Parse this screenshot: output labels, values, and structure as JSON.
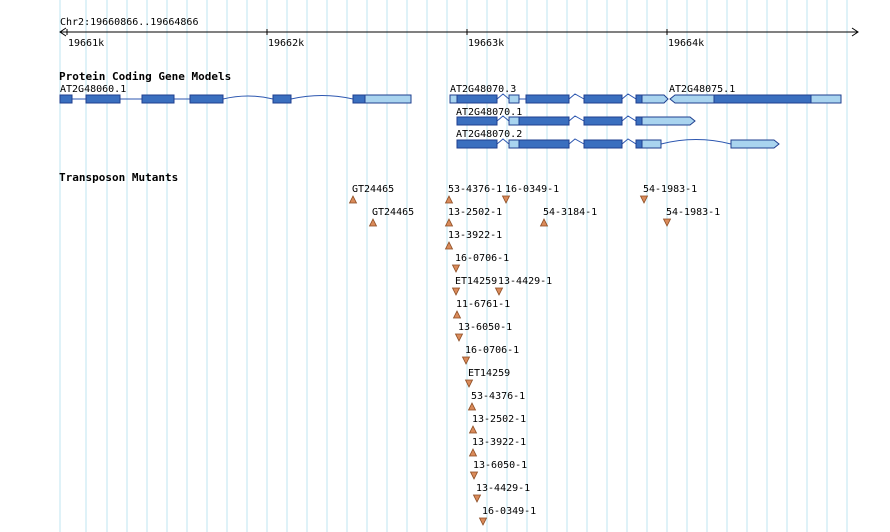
{
  "region": "Chr2:19660866..19664866",
  "ruler": {
    "ticks": [
      {
        "pos": 19661000,
        "label": "19661k"
      },
      {
        "pos": 19662000,
        "label": "19662k"
      },
      {
        "pos": 19663000,
        "label": "19663k"
      },
      {
        "pos": 19664000,
        "label": "19664k"
      }
    ]
  },
  "tracks": {
    "genes": {
      "title": "Protein Coding Gene Models",
      "models": [
        {
          "label": "AT2G48060.1",
          "strand": "-"
        },
        {
          "label": "AT2G48070.3",
          "strand": "+"
        },
        {
          "label": "AT2G48070.1",
          "strand": "+"
        },
        {
          "label": "AT2G48070.2",
          "strand": "+"
        },
        {
          "label": "AT2G48075.1",
          "strand": "-"
        }
      ]
    },
    "transposons": {
      "title": "Transposon Mutants",
      "items": [
        {
          "label": "GT24465",
          "dir": "up"
        },
        {
          "label": "GT24465",
          "dir": "up"
        },
        {
          "label": "53-4376-1",
          "dir": "up"
        },
        {
          "label": "16-0349-1",
          "dir": "down"
        },
        {
          "label": "13-2502-1",
          "dir": "up"
        },
        {
          "label": "54-3184-1",
          "dir": "up"
        },
        {
          "label": "13-3922-1",
          "dir": "up"
        },
        {
          "label": "16-0706-1",
          "dir": "down"
        },
        {
          "label": "ET14259",
          "dir": "down"
        },
        {
          "label": "13-4429-1",
          "dir": "down"
        },
        {
          "label": "11-6761-1",
          "dir": "up"
        },
        {
          "label": "13-6050-1",
          "dir": "down"
        },
        {
          "label": "16-0706-1",
          "dir": "down"
        },
        {
          "label": "ET14259",
          "dir": "down"
        },
        {
          "label": "53-4376-1",
          "dir": "up"
        },
        {
          "label": "13-2502-1",
          "dir": "up"
        },
        {
          "label": "13-3922-1",
          "dir": "up"
        },
        {
          "label": "13-6050-1",
          "dir": "down"
        },
        {
          "label": "13-4429-1",
          "dir": "down"
        },
        {
          "label": "16-0349-1",
          "dir": "down"
        },
        {
          "label": "54-1983-1",
          "dir": "down"
        },
        {
          "label": "54-1983-1",
          "dir": "down"
        }
      ]
    }
  },
  "colors": {
    "grid": "#bfe6f2",
    "cds": "#3a6fbf",
    "utr": "#a9d4ef",
    "outline": "#1f3f8f",
    "intron": "#2d57b0",
    "transposon_fill": "#d98a5a",
    "transposon_stroke": "#8a4a20"
  }
}
